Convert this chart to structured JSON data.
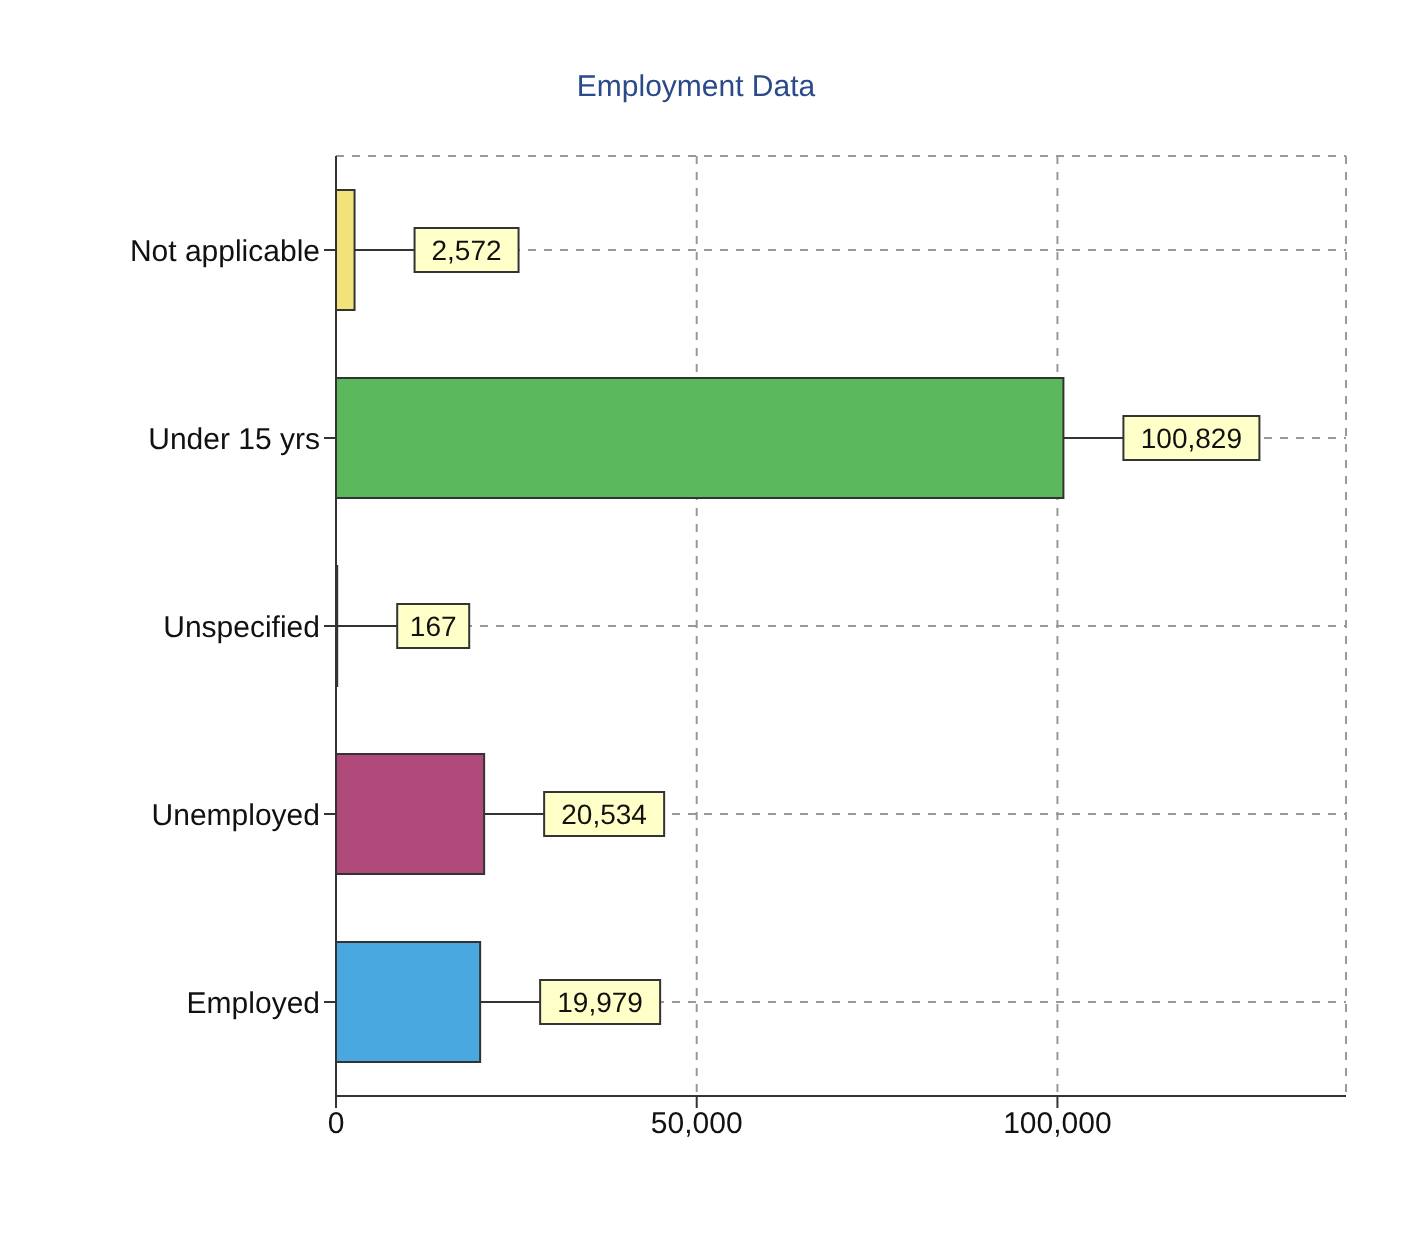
{
  "chart_data": {
    "type": "bar",
    "orientation": "horizontal",
    "title": "Employment Data",
    "categories": [
      "Not applicable",
      "Under 15 yrs",
      "Unspecified",
      "Unemployed",
      "Employed"
    ],
    "values": [
      2572,
      100829,
      167,
      20534,
      19979
    ],
    "colors": [
      "#f2e27a",
      "#5cb85c",
      "#6b1f2a",
      "#b04a7a",
      "#4aa8e0"
    ],
    "value_labels": [
      "2,572",
      "100,829",
      "167",
      "20,534",
      "19,979"
    ],
    "xlim": [
      0,
      140000
    ],
    "xticks": [
      {
        "value": 0,
        "label": "0"
      },
      {
        "value": 50000,
        "label": "50,000"
      },
      {
        "value": 100000,
        "label": "100,000"
      }
    ],
    "grid": true
  }
}
